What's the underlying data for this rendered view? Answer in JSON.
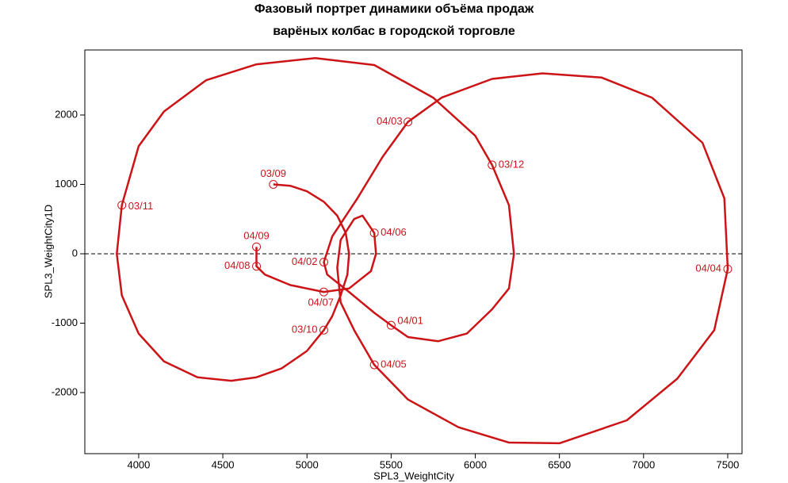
{
  "chart_data": {
    "type": "line",
    "title": [
      "Фазовый портрет динамики объёма продаж",
      "варёных колбас в городской торговле"
    ],
    "x_label": "SPL3_WeightCity",
    "y_label": "SPL3_WeightCity1D",
    "xlim": [
      3680,
      7585
    ],
    "ylim": [
      -2880,
      2937
    ],
    "xticks": [
      4000,
      4500,
      5000,
      5500,
      6000,
      6500,
      7000,
      7500
    ],
    "yticks": [
      -2000,
      -1000,
      0,
      1000,
      2000
    ],
    "hline": 0,
    "color": "#cc1417",
    "series": [
      {
        "x": [
          4800,
          4900,
          5000,
          5100,
          5180,
          5230,
          5250,
          5240,
          5200,
          5150,
          5100,
          5000,
          4850,
          4700,
          4550,
          4350,
          4150,
          4000,
          3900,
          3870,
          3900,
          4000,
          4150,
          4400,
          4700,
          5050,
          5400,
          5750,
          6000,
          6100,
          6200,
          6230,
          6200,
          6100,
          5950,
          5780,
          5600,
          5500,
          5400,
          5250,
          5120,
          5100,
          5150,
          5300,
          5450,
          5600,
          5800,
          6100,
          6400,
          6750,
          7050,
          7350,
          7480,
          7500,
          7420,
          7200,
          6900,
          6500,
          6200,
          5900,
          5600,
          5400,
          5280,
          5200,
          5180,
          5200,
          5280,
          5330,
          5400,
          5410,
          5380,
          5250,
          5100,
          4900,
          4750,
          4700,
          4700
        ],
        "values": [
          1000,
          980,
          900,
          750,
          550,
          300,
          0,
          -300,
          -600,
          -900,
          -1100,
          -1400,
          -1650,
          -1780,
          -1830,
          -1780,
          -1550,
          -1150,
          -600,
          0,
          700,
          1550,
          2050,
          2500,
          2730,
          2820,
          2720,
          2250,
          1700,
          1280,
          700,
          0,
          -500,
          -800,
          -1150,
          -1260,
          -1200,
          -1030,
          -850,
          -550,
          -300,
          -120,
          250,
          800,
          1400,
          1900,
          2250,
          2520,
          2600,
          2540,
          2250,
          1600,
          800,
          -220,
          -1100,
          -1800,
          -2400,
          -2730,
          -2720,
          -2500,
          -2100,
          -1600,
          -1100,
          -700,
          -200,
          200,
          500,
          550,
          300,
          0,
          -250,
          -500,
          -550,
          -450,
          -300,
          -180,
          100
        ]
      },
      {
        "x": [
          4800,
          5100,
          3900,
          6100,
          5500,
          5100,
          5600,
          7500,
          5400,
          5400,
          5100,
          4700,
          4700
        ],
        "values": [
          1000,
          -1100,
          700,
          1280,
          -1030,
          -120,
          1900,
          -220,
          -1600,
          300,
          -550,
          -180,
          100
        ],
        "labels": [
          "03/09",
          "03/10",
          "03/11",
          "03/12",
          "04/01",
          "04/02",
          "04/03",
          "04/04",
          "04/05",
          "04/06",
          "04/07",
          "04/08",
          "04/09"
        ]
      }
    ]
  }
}
